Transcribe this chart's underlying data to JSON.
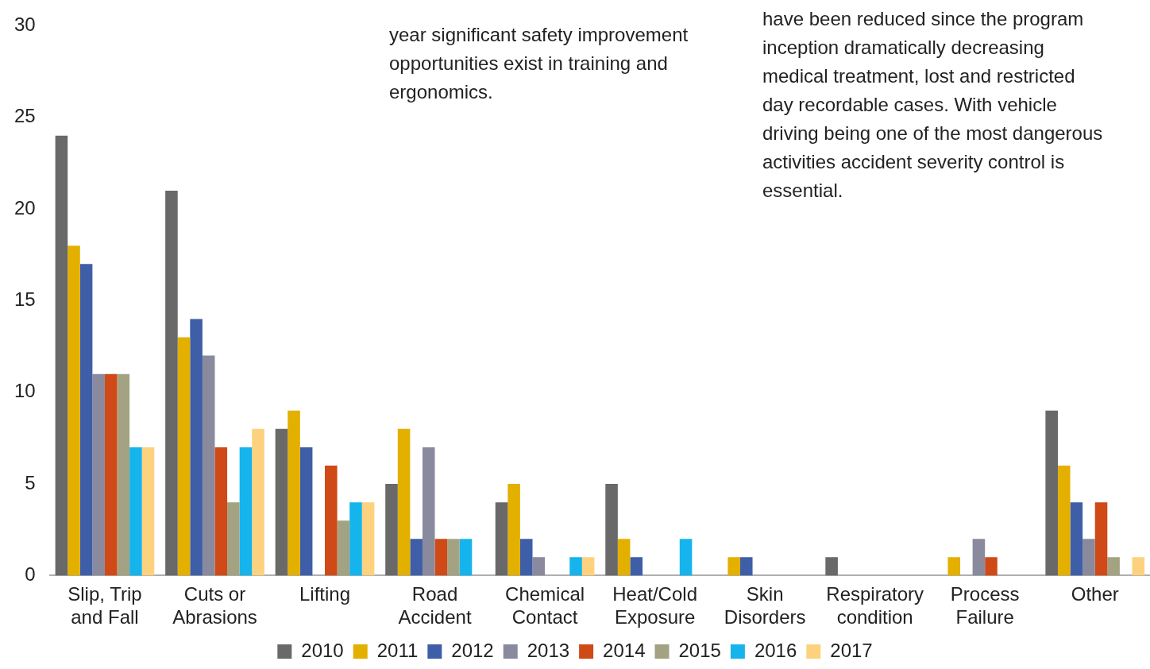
{
  "chart_data": {
    "type": "bar",
    "categories": [
      "Slip, Trip and Fall",
      "Cuts or Abrasions",
      "Lifting",
      "Road Accident",
      "Chemical Contact",
      "Heat/Cold Exposure",
      "Skin Disorders",
      "Respiratory condition",
      "Process Failure",
      "Other"
    ],
    "series": [
      {
        "name": "2010",
        "color": "#696969",
        "values": [
          24,
          21,
          8,
          5,
          4,
          5,
          0,
          1,
          0,
          9
        ]
      },
      {
        "name": "2011",
        "color": "#e3b000",
        "values": [
          18,
          13,
          9,
          8,
          5,
          2,
          1,
          0,
          1,
          6
        ]
      },
      {
        "name": "2012",
        "color": "#3f5ea8",
        "values": [
          17,
          14,
          7,
          2,
          2,
          1,
          1,
          0,
          0,
          4
        ]
      },
      {
        "name": "2013",
        "color": "#8a8a9e",
        "values": [
          11,
          12,
          0,
          7,
          1,
          0,
          0,
          0,
          2,
          2
        ]
      },
      {
        "name": "2014",
        "color": "#cf4a16",
        "values": [
          11,
          7,
          6,
          2,
          0,
          0,
          0,
          0,
          1,
          4
        ]
      },
      {
        "name": "2015",
        "color": "#a3a383",
        "values": [
          11,
          4,
          3,
          2,
          0,
          0,
          0,
          0,
          0,
          1
        ]
      },
      {
        "name": "2016",
        "color": "#16b4ec",
        "values": [
          7,
          7,
          4,
          2,
          1,
          2,
          0,
          0,
          0,
          0
        ]
      },
      {
        "name": "2017",
        "color": "#fdd27e",
        "values": [
          7,
          8,
          4,
          0,
          1,
          0,
          0,
          0,
          0,
          1
        ]
      }
    ],
    "ylim": [
      0,
      30
    ],
    "yticks": [
      0,
      5,
      10,
      15,
      20,
      25,
      30
    ],
    "grid": false,
    "legend": "bottom",
    "annotations": [
      "year significant safety improvement opportunities exist in training and ergonomics.",
      "have been reduced since the program inception dramatically decreasing medical treatment, lost and restricted day recordable cases.  With vehicle driving being one of the most dangerous activities accident severity control is essential."
    ]
  }
}
